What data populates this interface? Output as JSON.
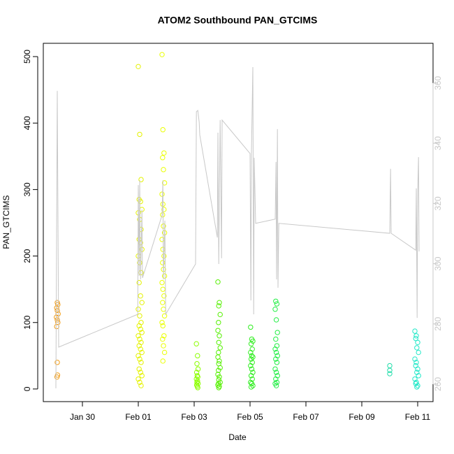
{
  "chart_data": {
    "type": "scatter",
    "title": "ATOM2 Southbound PAN_GTCIMS",
    "x_label": "Date",
    "y_label": "PAN_GTCIMS",
    "xlim": [
      28.6,
      42.55
    ],
    "xticks": [
      {
        "value": 30,
        "label": "Jan 30"
      },
      {
        "value": 32,
        "label": "Feb 01"
      },
      {
        "value": 34,
        "label": "Feb 03"
      },
      {
        "value": 36,
        "label": "Feb 05"
      },
      {
        "value": 38,
        "label": "Feb 07"
      },
      {
        "value": 40,
        "label": "Feb 09"
      },
      {
        "value": 42,
        "label": "Feb 11"
      }
    ],
    "ylim": [
      -19,
      520
    ],
    "yticks": [
      0,
      100,
      200,
      300,
      400,
      500
    ],
    "y2lim": [
      254.2,
      373.2
    ],
    "y2ticks": [
      260,
      280,
      300,
      320,
      340,
      360
    ],
    "y2_color": "#c8c8c8",
    "series": [
      {
        "color": "#f39c12",
        "mode": "points",
        "x": [
          29.1,
          29.12,
          29.08,
          29.1,
          29.13,
          29.07,
          29.1,
          29.12,
          29.08,
          29.1,
          29.11,
          29.09
        ],
        "values": [
          130,
          127,
          122,
          118,
          113,
          108,
          104,
          100,
          94,
          40,
          21,
          18
        ]
      },
      {
        "color": "#e4f200",
        "mode": "points",
        "x": [
          32.0,
          32.05,
          32.1,
          32.03,
          32.08,
          32.13,
          32.0,
          32.05,
          32.1,
          32.03,
          32.08,
          32.13,
          32.0,
          32.05,
          32.1,
          32.03,
          32.08,
          32.13,
          32.0,
          32.05,
          32.1,
          32.03,
          32.08,
          32.13,
          32.0,
          32.05,
          32.1,
          32.03,
          32.08,
          32.13,
          32.0,
          32.05,
          32.1,
          32.03,
          32.08,
          32.13,
          32.0,
          32.05,
          32.1
        ],
        "values": [
          485,
          383,
          315,
          285,
          282,
          270,
          265,
          255,
          240,
          225,
          220,
          210,
          200,
          190,
          175,
          160,
          140,
          130,
          120,
          110,
          100,
          95,
          90,
          85,
          80,
          75,
          70,
          65,
          60,
          55,
          50,
          45,
          40,
          30,
          25,
          20,
          15,
          10,
          5
        ]
      },
      {
        "color": "#eaff00",
        "mode": "points",
        "x": [
          32.85,
          32.88,
          32.92,
          32.87,
          32.9,
          32.94,
          32.85,
          32.88,
          32.92,
          32.87,
          32.9,
          32.94,
          32.85,
          32.88,
          32.92,
          32.87,
          32.9,
          32.94,
          32.85,
          32.88,
          32.92,
          32.87,
          32.9,
          32.94,
          32.85,
          32.88,
          32.92,
          32.87,
          32.9,
          32.94,
          32.88
        ],
        "values": [
          503,
          390,
          355,
          348,
          330,
          310,
          293,
          278,
          270,
          262,
          245,
          235,
          225,
          210,
          200,
          190,
          180,
          170,
          160,
          150,
          140,
          130,
          120,
          110,
          100,
          95,
          80,
          75,
          65,
          55,
          42
        ]
      },
      {
        "color": "#8cff00",
        "mode": "points",
        "x": [
          34.08,
          34.12,
          34.1,
          34.14,
          34.09,
          34.11,
          34.13,
          34.08,
          34.12,
          34.1,
          34.14,
          34.09,
          34.11,
          34.13
        ],
        "values": [
          68,
          50,
          38,
          30,
          25,
          20,
          18,
          15,
          12,
          10,
          8,
          6,
          4,
          2
        ]
      },
      {
        "color": "#55f000",
        "mode": "points",
        "x": [
          34.85,
          34.9,
          34.88,
          34.93,
          34.87,
          34.85,
          34.9,
          34.88,
          34.93,
          34.87,
          34.85,
          34.9,
          34.88,
          34.93,
          34.87,
          34.85,
          34.9,
          34.88,
          34.93,
          34.87,
          34.85,
          34.9,
          34.88
        ],
        "values": [
          161,
          130,
          125,
          112,
          100,
          88,
          80,
          70,
          62,
          55,
          48,
          42,
          38,
          32,
          28,
          22,
          18,
          14,
          10,
          8,
          6,
          4,
          2
        ]
      },
      {
        "color": "#30ee20",
        "mode": "points",
        "x": [
          36.02,
          36.06,
          36.1,
          36.04,
          36.08,
          36.02,
          36.06,
          36.1,
          36.04,
          36.08,
          36.02,
          36.06,
          36.1,
          36.04,
          36.08,
          36.02,
          36.06,
          36.1,
          36.04
        ],
        "values": [
          93,
          75,
          72,
          68,
          60,
          55,
          50,
          48,
          45,
          40,
          35,
          30,
          25,
          20,
          15,
          10,
          8,
          5,
          3
        ]
      },
      {
        "color": "#22ee44",
        "mode": "points",
        "x": [
          36.92,
          36.96,
          36.9,
          36.94,
          36.98,
          36.92,
          36.96,
          36.9,
          36.94,
          36.98,
          36.92,
          36.96,
          36.9,
          36.94,
          36.98,
          36.92,
          36.96,
          36.9,
          36.94
        ],
        "values": [
          132,
          128,
          120,
          104,
          85,
          75,
          65,
          60,
          55,
          50,
          45,
          40,
          30,
          25,
          20,
          15,
          10,
          8,
          5
        ]
      },
      {
        "color": "#22ddaa",
        "mode": "points",
        "x": [
          41.0,
          41.0,
          41.0
        ],
        "values": [
          35,
          28,
          23
        ]
      },
      {
        "color": "#22e8c8",
        "mode": "points",
        "x": [
          41.9,
          41.95,
          41.93,
          42.0,
          41.97,
          42.03,
          41.9,
          41.95,
          41.93,
          42.0,
          41.97,
          42.03,
          41.9,
          41.95,
          41.93,
          42.0,
          41.97
        ],
        "values": [
          87,
          80,
          76,
          70,
          62,
          55,
          45,
          40,
          35,
          30,
          25,
          20,
          15,
          10,
          8,
          5,
          3
        ]
      },
      {
        "color": "#c8c8c8",
        "mode": "line",
        "axis": "y2",
        "x": [
          29.05,
          29.1,
          29.15,
          31.98,
          32.0,
          32.03,
          32.05,
          32.08,
          32.13,
          32.15,
          32.85,
          32.88,
          32.9,
          32.95,
          32.98,
          34.05,
          34.08,
          34.13,
          34.18,
          34.2,
          34.83,
          34.85,
          34.88,
          34.93,
          34.98,
          35.0,
          36.0,
          36.03,
          36.05,
          36.1,
          36.13,
          36.15,
          36.2,
          36.9,
          36.93,
          36.95,
          36.98,
          37.0,
          37.03,
          41.0,
          41.03,
          41.05,
          41.93,
          41.95,
          41.98,
          42.0,
          42.03,
          42.05
        ],
        "values": [
          258.6,
          357.4,
          272.3,
          283.2,
          326.1,
          296.0,
          327.7,
          294.8,
          318.0,
          295.3,
          316.1,
          327.7,
          294.8,
          314.3,
          283.2,
          299.9,
          350.5,
          350.9,
          347.0,
          342.8,
          308.7,
          343.5,
          299.9,
          347.7,
          301.8,
          347.7,
          336.6,
          287.8,
          336.6,
          365.3,
          283.2,
          335.2,
          313.4,
          314.8,
          333.8,
          294.8,
          344.7,
          292.0,
          313.4,
          310.1,
          331.5,
          310.1,
          304.5,
          325.0,
          282.0,
          323.8,
          335.4,
          304.1
        ]
      }
    ]
  }
}
